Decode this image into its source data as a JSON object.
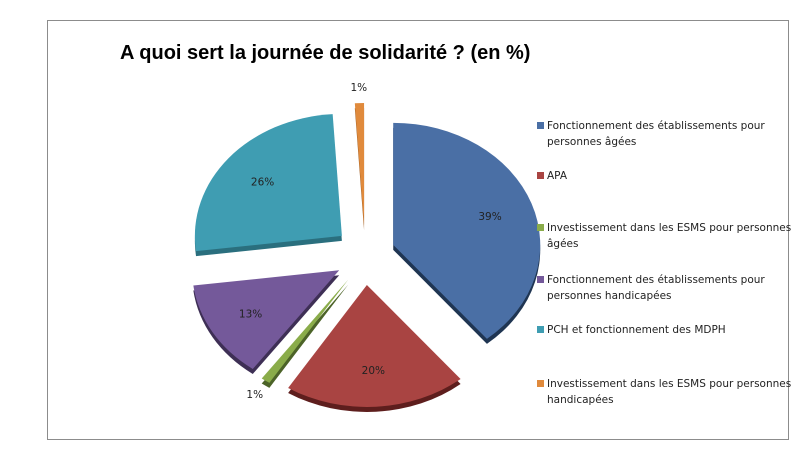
{
  "chart_data": {
    "type": "pie",
    "title": "A quoi sert la journée de solidarité ? (en %)",
    "legend_position": "right",
    "categories": [
      "Fonctionnement des établissements pour personnes âgées",
      "APA",
      "Investissement dans les ESMS pour personnes âgées",
      "Fonctionnement des établissements pour personnes handicapées",
      "PCH et fonctionnement des MDPH",
      "Investissement dans les ESMS pour personnes handicapées"
    ],
    "values": [
      39,
      20,
      1,
      13,
      26,
      1
    ],
    "data_labels": [
      "39%",
      "20%",
      "1%",
      "13%",
      "26%",
      "1%"
    ],
    "colors": [
      "#4a6fa5",
      "#a94442",
      "#8aac4a",
      "#74599a",
      "#3f9db2",
      "#e08a3c"
    ],
    "shadow_colors": [
      "#1f3552",
      "#5e1e1d",
      "#4c6328",
      "#3e2f55",
      "#2a6f7e",
      "#9b5a20"
    ]
  }
}
